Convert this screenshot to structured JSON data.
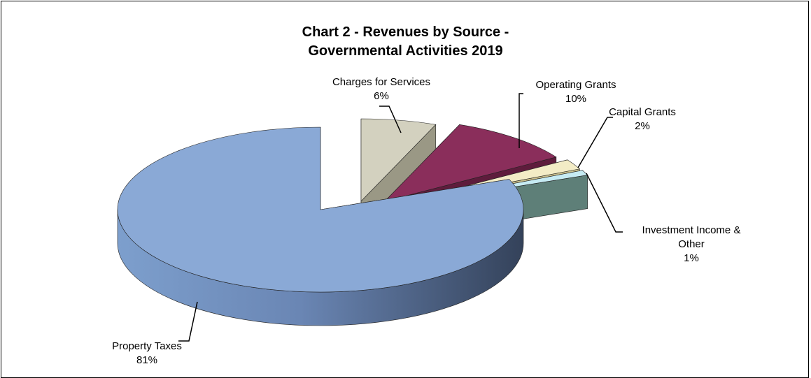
{
  "chart_data": {
    "type": "pie",
    "title_line1": "Chart 2 - Revenues by Source -",
    "title_line2": "Governmental Activities 2019",
    "categories": [
      "Property Taxes",
      "Charges for Services",
      "Operating Grants",
      "Capital Grants",
      "Investment Income & Other"
    ],
    "values": [
      81,
      6,
      10,
      2,
      1
    ],
    "value_labels": [
      "81%",
      "6%",
      "10%",
      "2%",
      "1%"
    ],
    "label_lines": [
      [
        "Property Taxes"
      ],
      [
        "Charges for Services"
      ],
      [
        "Operating Grants"
      ],
      [
        "Capital Grants"
      ],
      [
        "Investment  Income &",
        "Other"
      ]
    ],
    "colors": [
      "#8aa9d6",
      "#d3d1bf",
      "#8a2e5b",
      "#f3ecc6",
      "#c6ebf3"
    ],
    "side_colors": [
      "#5a77a3",
      "#9a9885",
      "#5e1c3c",
      "#c9bf8c",
      "#5e7f78"
    ],
    "three_d": true,
    "exploded": true,
    "legend": "none"
  }
}
